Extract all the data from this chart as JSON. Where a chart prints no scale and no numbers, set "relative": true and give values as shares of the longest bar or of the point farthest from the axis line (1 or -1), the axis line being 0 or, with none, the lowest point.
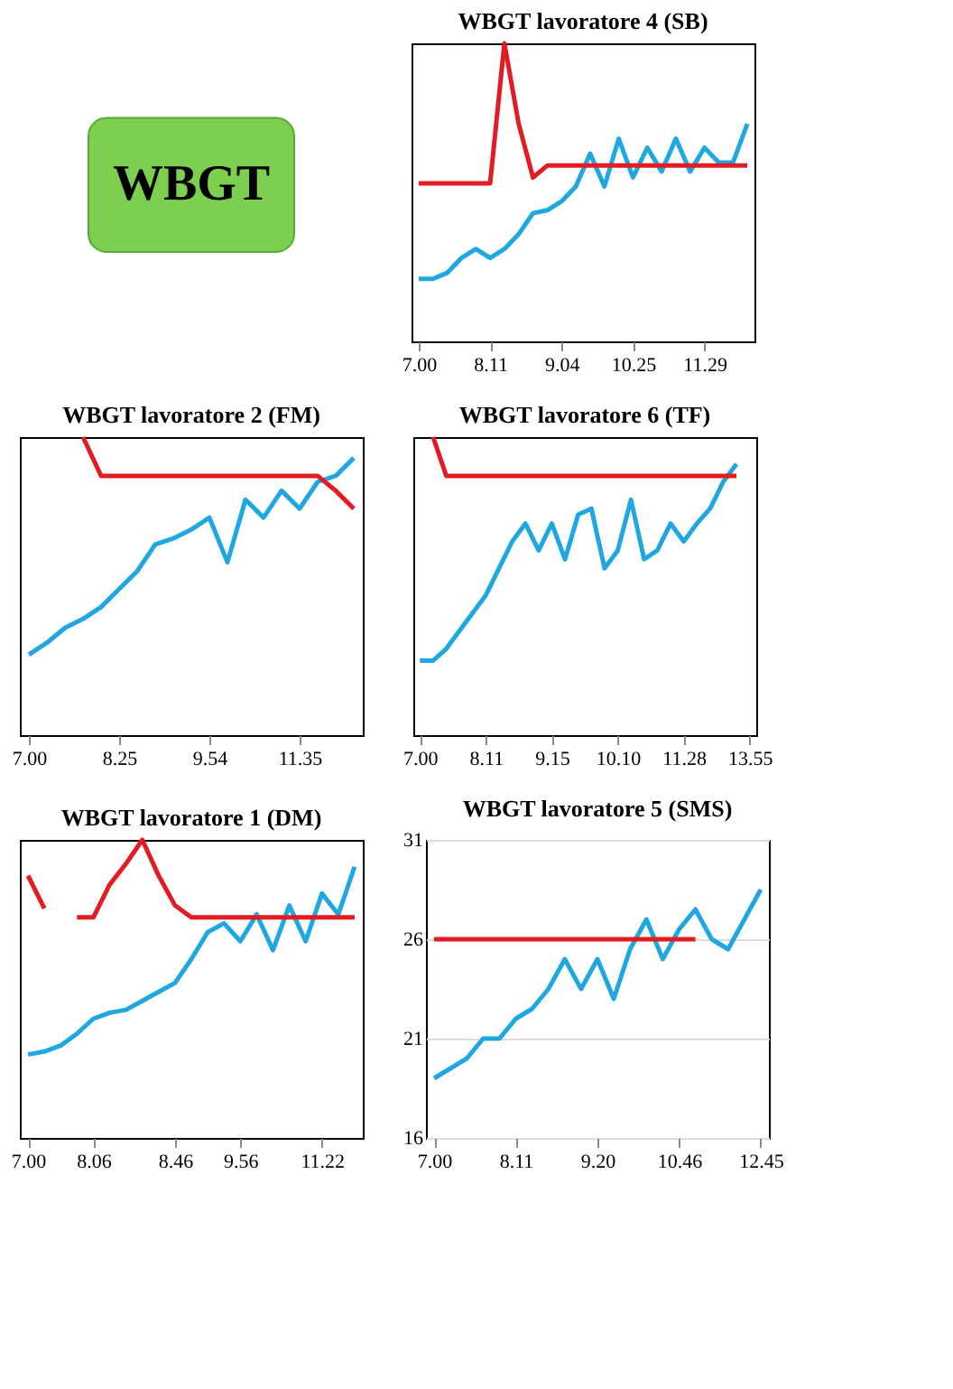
{
  "chart_data": [
    {
      "type": "other",
      "title": "WBGT",
      "color": "#7ccf4f"
    },
    {
      "type": "line",
      "title": "WBGT lavoratore 4 (SB)",
      "relative": true,
      "categories": [
        "7.00",
        null,
        null,
        null,
        null,
        "8.11",
        null,
        null,
        null,
        null,
        "9.04",
        null,
        null,
        null,
        null,
        "10.25",
        null,
        null,
        null,
        null,
        "11.29",
        null,
        null,
        null
      ],
      "series": [
        {
          "color": "#1ea7e0",
          "values": [
            0.21,
            0.21,
            0.23,
            0.28,
            0.31,
            0.28,
            0.31,
            0.36,
            0.43,
            0.44,
            0.47,
            0.52,
            0.63,
            0.52,
            0.68,
            0.55,
            0.65,
            0.57,
            0.68,
            0.57,
            0.65,
            0.6,
            0.6,
            0.73
          ]
        },
        {
          "color": "#e31b23",
          "values": [
            0.53,
            0.53,
            0.53,
            0.53,
            0.53,
            0.53,
            1,
            0.73,
            0.55,
            0.59,
            0.59,
            0.59,
            0.59,
            0.59,
            0.59,
            0.59,
            0.59,
            0.59,
            0.59,
            0.59,
            0.59,
            0.59,
            0.59,
            0.59
          ]
        }
      ]
    },
    {
      "type": "line",
      "title": "WBGT lavoratore 2 (FM)",
      "relative": true,
      "categories": [
        "7.00",
        null,
        null,
        null,
        null,
        "8.25",
        null,
        null,
        null,
        null,
        "9.54",
        null,
        null,
        null,
        null,
        "11.35",
        null,
        null,
        null
      ],
      "series": [
        {
          "color": "#1ea7e0",
          "values": [
            0.27,
            0.31,
            0.36,
            0.39,
            0.43,
            0.49,
            0.55,
            0.64,
            0.66,
            0.69,
            0.73,
            0.58,
            0.79,
            0.73,
            0.82,
            0.76,
            0.85,
            0.87,
            0.93
          ]
        },
        {
          "color": "#e31b23",
          "values": [
            null,
            null,
            null,
            1,
            0.87,
            0.87,
            0.87,
            0.87,
            0.87,
            0.87,
            0.87,
            0.87,
            0.87,
            0.87,
            0.87,
            0.87,
            0.87,
            0.82,
            0.76
          ]
        }
      ]
    },
    {
      "type": "line",
      "title": "WBGT lavoratore 6 (TF)",
      "relative": true,
      "categories": [
        "7.00",
        null,
        null,
        null,
        null,
        "8.11",
        null,
        null,
        null,
        null,
        "9.15",
        null,
        null,
        null,
        null,
        "10.10",
        null,
        null,
        null,
        null,
        "11.28",
        null,
        null,
        null,
        null,
        "13.55"
      ],
      "series": [
        {
          "color": "#1ea7e0",
          "values": [
            0.25,
            0.25,
            0.29,
            0.35,
            0.41,
            0.47,
            0.56,
            0.65,
            0.71,
            0.62,
            0.71,
            0.59,
            0.74,
            0.76,
            0.56,
            0.62,
            0.79,
            0.59,
            0.62,
            0.71,
            0.65,
            0.71,
            0.76,
            0.85,
            0.91,
            null
          ]
        },
        {
          "color": "#e31b23",
          "values": [
            null,
            1,
            0.87,
            0.87,
            0.87,
            0.87,
            0.87,
            0.87,
            0.87,
            0.87,
            0.87,
            0.87,
            0.87,
            0.87,
            0.87,
            0.87,
            0.87,
            0.87,
            0.87,
            0.87,
            0.87,
            0.87,
            0.87,
            0.87,
            0.87,
            null
          ]
        }
      ]
    },
    {
      "type": "line",
      "title": "WBGT lavoratore 1 (DM)",
      "relative": true,
      "categories": [
        "7.00",
        null,
        null,
        null,
        "8.06",
        null,
        null,
        null,
        null,
        "8.46",
        null,
        null,
        null,
        "9.56",
        null,
        null,
        null,
        null,
        "11.22",
        null,
        null
      ],
      "series": [
        {
          "color": "#1ea7e0",
          "values": [
            0.28,
            0.29,
            0.31,
            0.35,
            0.4,
            0.42,
            0.43,
            0.46,
            0.49,
            0.52,
            0.6,
            0.69,
            0.72,
            0.66,
            0.75,
            0.63,
            0.78,
            0.66,
            0.82,
            0.75,
            0.91
          ]
        },
        {
          "color": "#e31b23",
          "values": [
            0.88,
            0.77,
            null,
            0.74,
            0.74,
            0.85,
            0.92,
            1,
            0.88,
            0.78,
            0.74,
            0.74,
            0.74,
            0.74,
            0.74,
            0.74,
            0.74,
            0.74,
            0.74,
            0.74,
            0.74
          ]
        }
      ]
    },
    {
      "type": "line",
      "title": "WBGT lavoratore 5 (SMS)",
      "ylim": [
        16,
        31
      ],
      "yticks": [
        16,
        21,
        26,
        31
      ],
      "grid": "y",
      "categories": [
        "7.00",
        null,
        null,
        null,
        null,
        "8.11",
        null,
        null,
        null,
        null,
        "9.20",
        null,
        null,
        null,
        null,
        "10.46",
        null,
        null,
        null,
        null,
        "12.45"
      ],
      "series": [
        {
          "color": "#1ea7e0",
          "values": [
            19,
            19.5,
            20,
            21,
            21,
            22,
            22.5,
            23.5,
            25,
            23.5,
            25,
            23,
            25.5,
            27,
            25,
            26.5,
            27.5,
            26,
            25.5,
            27,
            28.5
          ]
        },
        {
          "color": "#e31b23",
          "values": [
            26,
            26,
            26,
            26,
            26,
            26,
            26,
            26,
            26,
            26,
            26,
            26,
            26,
            26,
            26,
            26,
            26,
            null,
            null,
            null,
            null
          ]
        }
      ]
    }
  ]
}
